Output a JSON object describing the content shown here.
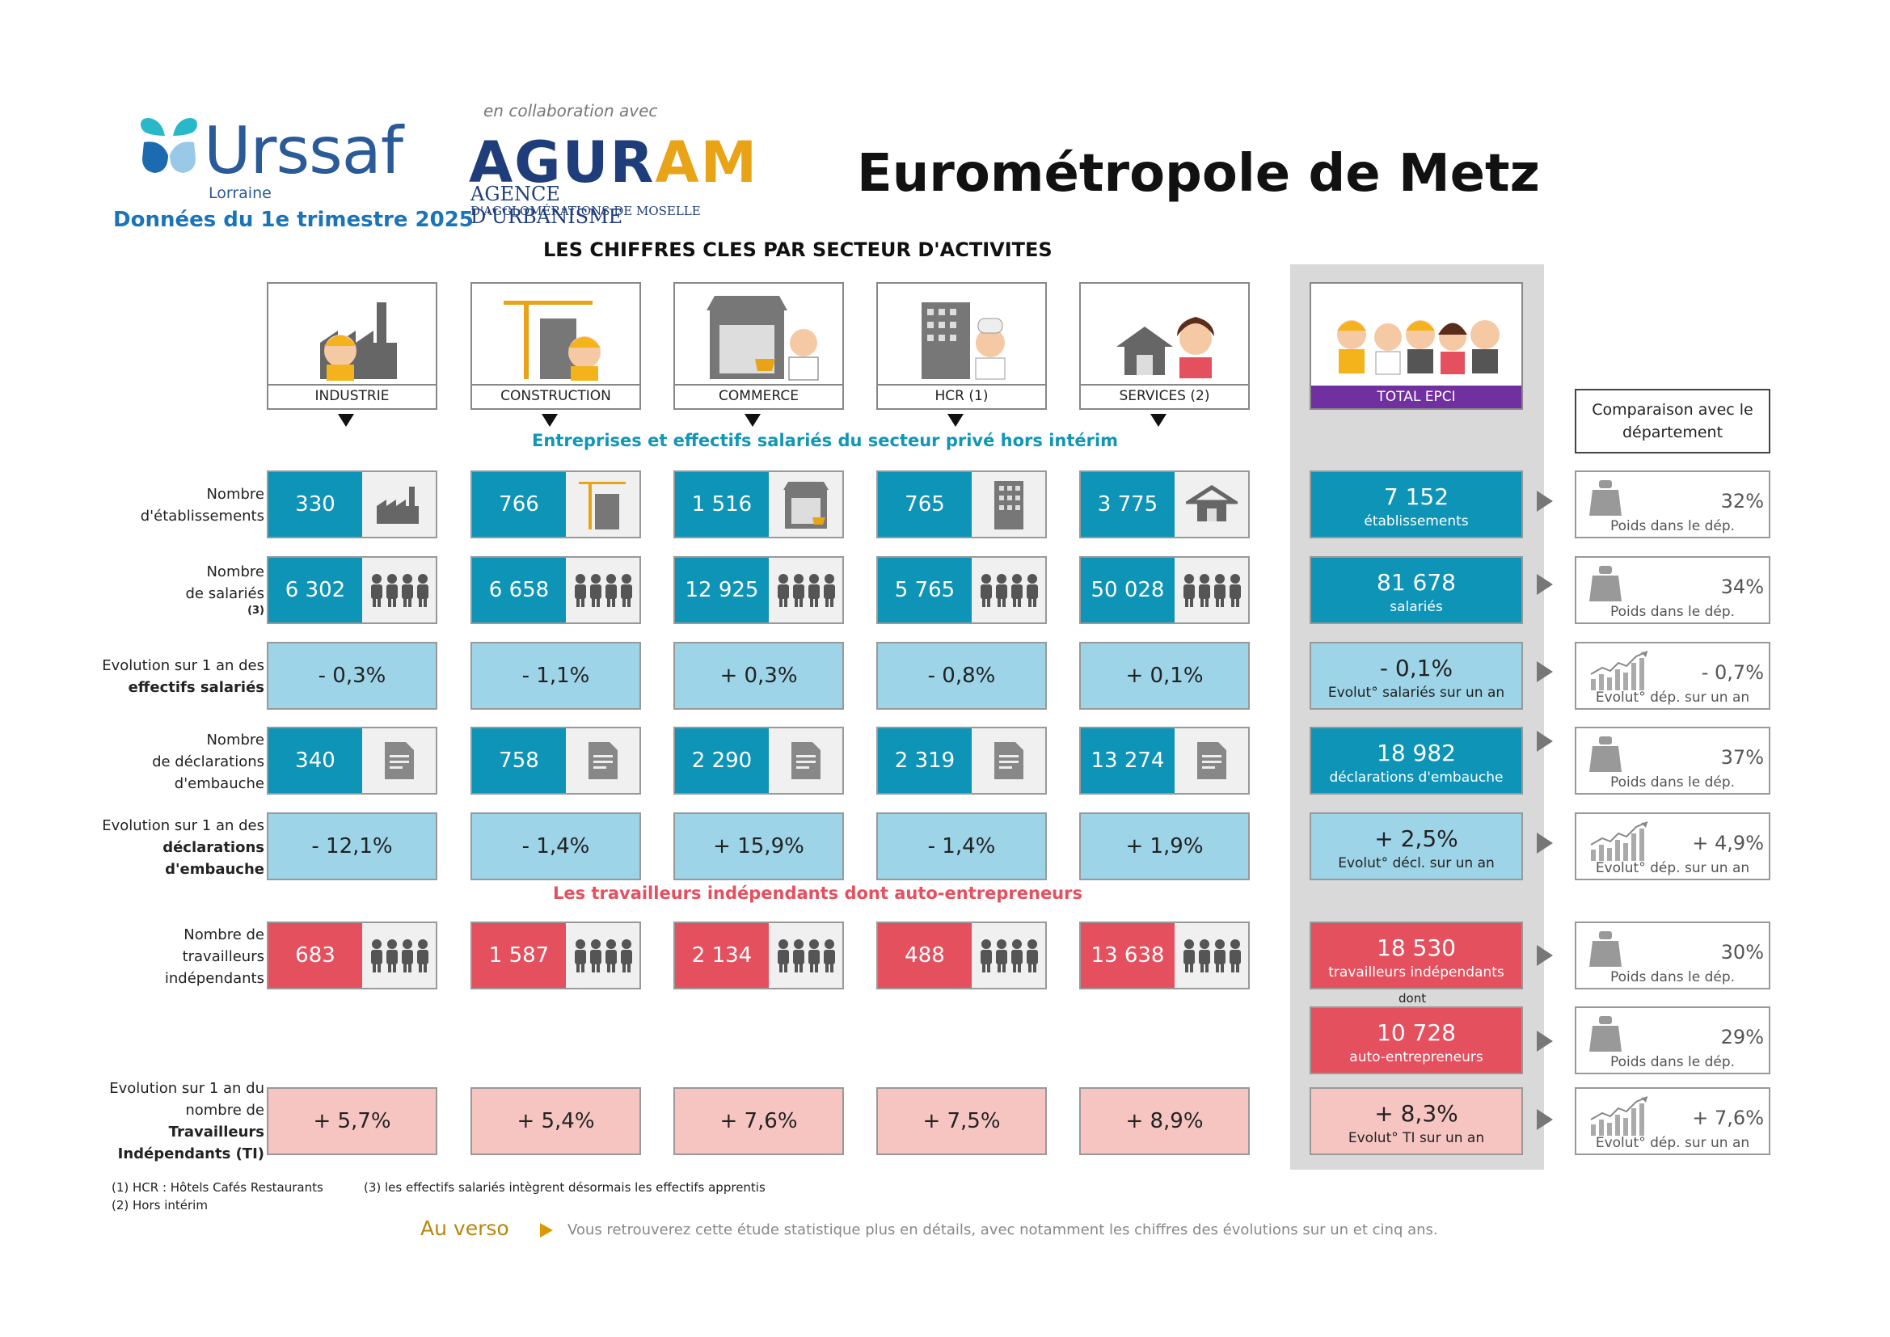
{
  "header": {
    "urssaf_name": "Urssaf",
    "urssaf_region": "Lorraine",
    "date_line": "Données du 1e trimestre 2025",
    "collab": "en collaboration avec",
    "agur_name": "AGURAM",
    "agur_line1": "AGENCE D'URBANISME",
    "agur_line2": "D'AGGLOMÉRATIONS DE MOSELLE",
    "title": "Eurométropole de Metz",
    "subtitle": "LES CHIFFRES CLES PAR SECTEUR D'ACTIVITES"
  },
  "sectors": [
    "INDUSTRIE",
    "CONSTRUCTION",
    "COMMERCE",
    "HCR (1)",
    "SERVICES (2)"
  ],
  "total_label": "TOTAL EPCI",
  "compare_label": "Comparaison avec le département",
  "bands": {
    "salaried": "Entreprises et effectifs salariés du secteur privé hors intérim",
    "independent": "Les travailleurs indépendants dont auto-entrepreneurs"
  },
  "row_labels": {
    "establishments": [
      "Nombre",
      "d'établissements"
    ],
    "employees": [
      "Nombre",
      "de salariés",
      "(3)"
    ],
    "emp_evol": [
      "Evolution sur 1 an des",
      "effectifs salariés"
    ],
    "hires": [
      "Nombre",
      "de déclarations",
      "d'embauche"
    ],
    "hires_evol": [
      "Evolution sur 1 an des",
      "déclarations",
      "d'embauche"
    ],
    "indep": [
      "Nombre de",
      "travailleurs",
      "indépendants"
    ],
    "indep_evol": [
      "Evolution sur 1 an du",
      "nombre de",
      "Travailleurs",
      "Indépendants (TI)"
    ]
  },
  "values": {
    "establishments": [
      "330",
      "766",
      "1 516",
      "765",
      "3 775"
    ],
    "employees": [
      "6 302",
      "6 658",
      "12 925",
      "5 765",
      "50 028"
    ],
    "emp_evol": [
      "- 0,3%",
      "- 1,1%",
      "+ 0,3%",
      "- 0,8%",
      "+ 0,1%"
    ],
    "hires": [
      "340",
      "758",
      "2 290",
      "2 319",
      "13 274"
    ],
    "hires_evol": [
      "- 12,1%",
      "- 1,4%",
      "+ 15,9%",
      "- 1,4%",
      "+ 1,9%"
    ],
    "indep": [
      "683",
      "1 587",
      "2 134",
      "488",
      "13 638"
    ],
    "indep_evol": [
      "+ 5,7%",
      "+ 5,4%",
      "+ 7,6%",
      "+ 7,5%",
      "+ 8,9%"
    ]
  },
  "totals": {
    "establishments": {
      "value": "7 152",
      "caption": "établissements"
    },
    "employees": {
      "value": "81 678",
      "caption": "salariés"
    },
    "emp_evol": {
      "value": "- 0,1%",
      "caption": "Evolut° salariés sur un an"
    },
    "hires": {
      "value": "18 982",
      "caption": "déclarations d'embauche"
    },
    "hires_evol": {
      "value": "+ 2,5%",
      "caption": "Evolut° décl. sur un an"
    },
    "indep": {
      "value": "18 530",
      "caption": "travailleurs indépendants"
    },
    "dont": "dont",
    "auto": {
      "value": "10 728",
      "caption": "auto-entrepreneurs"
    },
    "indep_evol": {
      "value": "+ 8,3%",
      "caption": "Evolut° TI sur un an"
    }
  },
  "compare": {
    "establishments": {
      "value": "32%",
      "caption": "Poids dans le dép."
    },
    "employees": {
      "value": "34%",
      "caption": "Poids dans le dép."
    },
    "emp_evol": {
      "value": "- 0,7%",
      "caption": "Evolut° dép. sur un an"
    },
    "hires": {
      "value": "37%",
      "caption": "Poids dans le dép."
    },
    "hires_evol": {
      "value": "+ 4,9%",
      "caption": "Evolut° dép. sur un an"
    },
    "indep": {
      "value": "30%",
      "caption": "Poids dans le dép."
    },
    "auto": {
      "value": "29%",
      "caption": "Poids dans le dép."
    },
    "indep_evol": {
      "value": "+ 7,6%",
      "caption": "Evolut° dép. sur un an"
    }
  },
  "footnotes": {
    "n1": "(1) HCR : Hôtels Cafés Restaurants",
    "n2": "(2) Hors intérim",
    "n3": "(3) les effectifs salariés intègrent désormais les effectifs apprentis"
  },
  "verso": {
    "label": "Au verso",
    "text": "Vous retrouverez cette étude statistique plus en détails, avec notamment les chiffres des évolutions sur un et cinq ans."
  },
  "colors": {
    "teal": "#0e94b7",
    "red": "#e5505f",
    "light_blue": "#9dd4e8",
    "pink": "#f6c5c2",
    "purple": "#7030a0",
    "band_teal": "#1296b5",
    "band_red": "#e5505f"
  }
}
